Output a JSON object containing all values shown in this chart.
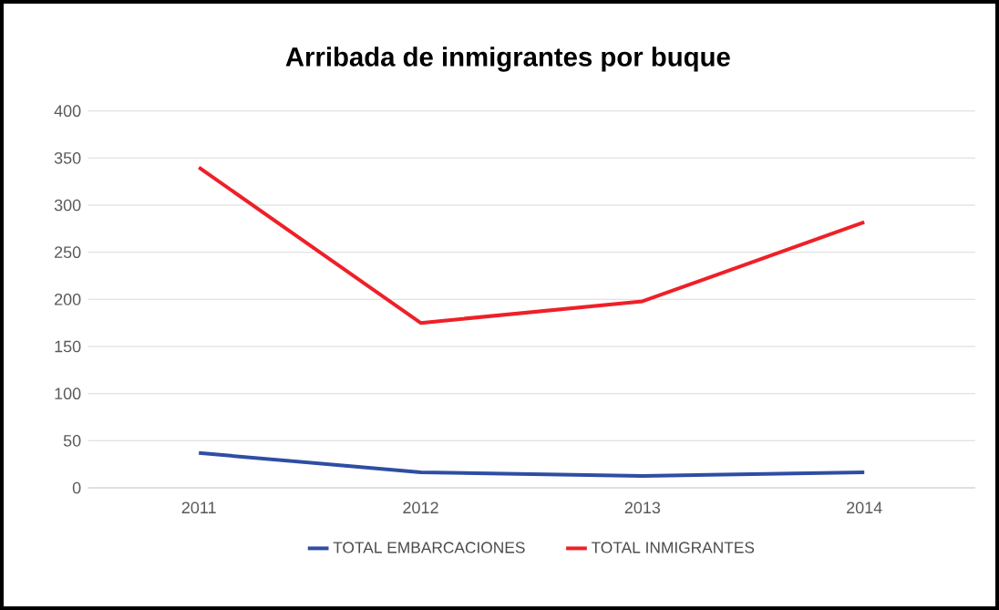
{
  "chart_data": {
    "type": "line",
    "title": "Arribada de inmigrantes por buque",
    "categories": [
      "2011",
      "2012",
      "2013",
      "2014"
    ],
    "series": [
      {
        "name": "TOTAL EMBARCACIONES",
        "color": "#2e4ea3",
        "values": [
          37,
          16.5,
          12.5,
          16.5
        ]
      },
      {
        "name": "TOTAL INMIGRANTES",
        "color": "#ee2028",
        "values": [
          340,
          175,
          198,
          282
        ]
      }
    ],
    "ylim": [
      0,
      400
    ],
    "yticks": [
      0,
      50,
      100,
      150,
      200,
      250,
      300,
      350,
      400
    ],
    "grid": "y",
    "legend": "bottom"
  }
}
